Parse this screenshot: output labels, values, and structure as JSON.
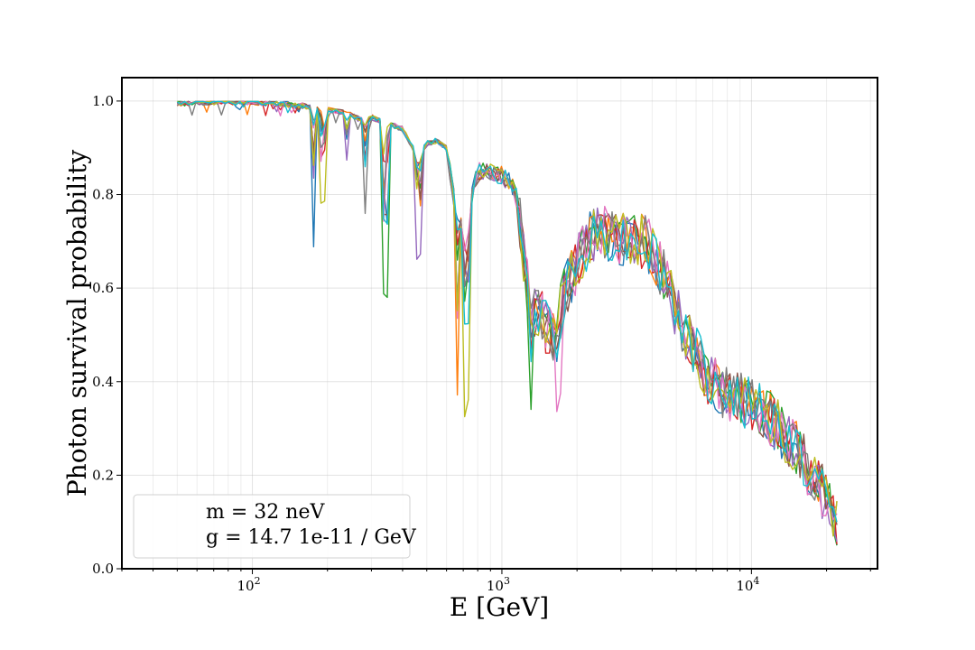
{
  "chart_data": {
    "type": "line",
    "title": "",
    "xlabel": "E [GeV]",
    "ylabel": "Photon survival probability",
    "xscale": "log",
    "xlim": [
      30,
      32000
    ],
    "ylim": [
      0.0,
      1.05
    ],
    "grid": true,
    "x_ticks": [
      {
        "value": 100,
        "base": "10",
        "exp": "2"
      },
      {
        "value": 1000,
        "base": "10",
        "exp": "3"
      },
      {
        "value": 10000,
        "base": "10",
        "exp": "4"
      }
    ],
    "y_ticks": [
      {
        "value": 0.0,
        "label": "0.0"
      },
      {
        "value": 0.2,
        "label": "0.2"
      },
      {
        "value": 0.4,
        "label": "0.4"
      },
      {
        "value": 0.6,
        "label": "0.6"
      },
      {
        "value": 0.8,
        "label": "0.8"
      },
      {
        "value": 1.0,
        "label": "1.0"
      }
    ],
    "legend": {
      "placement": "lower-left",
      "lines": [
        "m = 32 neV",
        "g = 14.7 1e-11 / GeV"
      ]
    },
    "base_curve": {
      "x": [
        50,
        60,
        70,
        80,
        100,
        120,
        140,
        160,
        175,
        190,
        210,
        230,
        250,
        270,
        285,
        300,
        320,
        340,
        360,
        400,
        440,
        460,
        500,
        550,
        600,
        640,
        680,
        700,
        740,
        800,
        900,
        1000,
        1100,
        1150,
        1200,
        1300,
        1400,
        1500,
        1600,
        1700,
        1800,
        2000,
        2200,
        2500,
        2800,
        3000,
        3300,
        3700,
        4000,
        4500,
        5000,
        5500,
        6000,
        6500,
        7000,
        8000,
        9000,
        10000,
        11000,
        12000,
        13000,
        14000,
        15000,
        16000,
        17000,
        18000,
        19000,
        20000,
        21000,
        22000
      ],
      "y": [
        0.995,
        0.997,
        0.998,
        0.998,
        0.997,
        0.995,
        0.993,
        0.99,
        0.985,
        0.98,
        0.98,
        0.975,
        0.97,
        0.96,
        0.955,
        0.965,
        0.96,
        0.955,
        0.95,
        0.94,
        0.9,
        0.88,
        0.91,
        0.915,
        0.9,
        0.8,
        0.75,
        0.7,
        0.78,
        0.85,
        0.85,
        0.84,
        0.82,
        0.79,
        0.7,
        0.55,
        0.55,
        0.52,
        0.5,
        0.56,
        0.6,
        0.65,
        0.7,
        0.72,
        0.71,
        0.7,
        0.71,
        0.7,
        0.68,
        0.62,
        0.55,
        0.5,
        0.46,
        0.42,
        0.4,
        0.37,
        0.36,
        0.35,
        0.34,
        0.32,
        0.3,
        0.28,
        0.26,
        0.24,
        0.21,
        0.19,
        0.17,
        0.14,
        0.11,
        0.09
      ]
    },
    "series": [
      {
        "color": "#1f77b4"
      },
      {
        "color": "#ff7f0e"
      },
      {
        "color": "#2ca02c"
      },
      {
        "color": "#d62728"
      },
      {
        "color": "#9467bd"
      },
      {
        "color": "#8c564b"
      },
      {
        "color": "#e377c2"
      },
      {
        "color": "#7f7f7f"
      },
      {
        "color": "#bcbd22"
      },
      {
        "color": "#17becf"
      }
    ],
    "dips": [
      {
        "x": 175,
        "depth": 0.3,
        "series": 0
      },
      {
        "x": 190,
        "depth": 0.2,
        "series": 8
      },
      {
        "x": 240,
        "depth": 0.1,
        "series": 4
      },
      {
        "x": 285,
        "depth": 0.18,
        "series": 7
      },
      {
        "x": 340,
        "depth": 0.37,
        "series": 2
      },
      {
        "x": 460,
        "depth": 0.22,
        "series": 4
      },
      {
        "x": 660,
        "depth": 0.4,
        "series": 1
      },
      {
        "x": 720,
        "depth": 0.4,
        "series": 8
      },
      {
        "x": 1300,
        "depth": 0.15,
        "series": 2
      },
      {
        "x": 1700,
        "depth": 0.15,
        "series": 6
      }
    ]
  }
}
